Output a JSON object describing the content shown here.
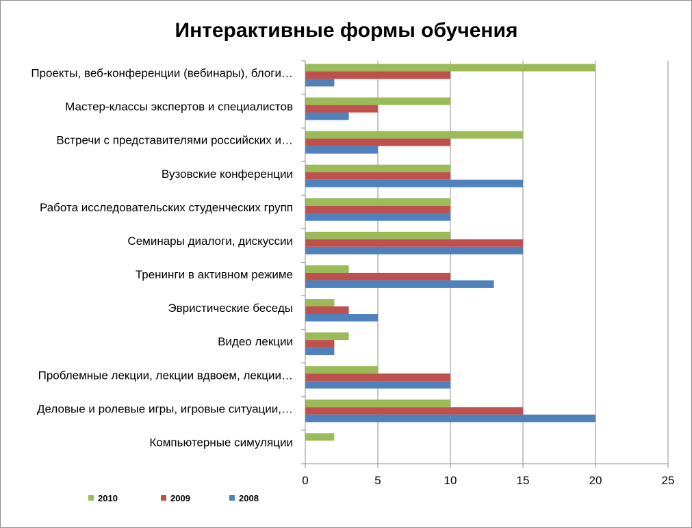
{
  "chart_data": {
    "type": "bar",
    "orientation": "horizontal",
    "title": "Интерактивные формы обучения",
    "xlabel": "",
    "ylabel": "",
    "xlim": [
      0,
      25
    ],
    "xticks": [
      0,
      5,
      10,
      15,
      20,
      25
    ],
    "grid": "vertical major gridlines",
    "legend_position": "bottom-left",
    "categories": [
      "Проекты, веб-конференции (вебинары), блоги…",
      "Мастер-классы экспертов и специалистов",
      "Встречи с представителями российских и…",
      "Вузовские конференции",
      "Работа исследовательских студенческих групп",
      "Семинары диалоги, дискуссии",
      "Тренинги в активном режиме",
      "Эвристические беседы",
      "Видео лекции",
      "Проблемные лекции, лекции вдвоем, лекции…",
      "Деловые и ролевые игры, игровые ситуации,…",
      "Компьютерные симуляции"
    ],
    "series": [
      {
        "name": "2010",
        "color": "#9bbb59",
        "values": [
          20,
          10,
          15,
          10,
          10,
          10,
          3,
          2,
          3,
          5,
          10,
          2
        ]
      },
      {
        "name": "2009",
        "color": "#c0504d",
        "values": [
          10,
          5,
          10,
          10,
          10,
          15,
          10,
          3,
          2,
          10,
          15,
          0
        ]
      },
      {
        "name": "2008",
        "color": "#4f81bd",
        "values": [
          2,
          3,
          5,
          15,
          10,
          15,
          13,
          5,
          2,
          10,
          20,
          0
        ]
      }
    ]
  }
}
